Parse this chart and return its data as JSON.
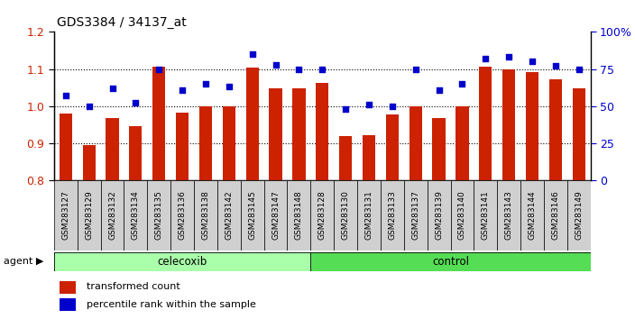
{
  "title": "GDS3384 / 34137_at",
  "samples": [
    "GSM283127",
    "GSM283129",
    "GSM283132",
    "GSM283134",
    "GSM283135",
    "GSM283136",
    "GSM283138",
    "GSM283142",
    "GSM283145",
    "GSM283147",
    "GSM283148",
    "GSM283128",
    "GSM283130",
    "GSM283131",
    "GSM283133",
    "GSM283137",
    "GSM283139",
    "GSM283140",
    "GSM283141",
    "GSM283143",
    "GSM283144",
    "GSM283146",
    "GSM283149"
  ],
  "bar_values": [
    0.98,
    0.895,
    0.968,
    0.947,
    1.105,
    0.982,
    0.999,
    1.0,
    1.103,
    1.047,
    1.047,
    1.063,
    0.918,
    0.922,
    0.978,
    1.0,
    0.968,
    1.0,
    1.105,
    1.1,
    1.092,
    1.072,
    1.047
  ],
  "percentile_values": [
    57,
    50,
    62,
    52,
    75,
    61,
    65,
    63,
    85,
    78,
    75,
    75,
    48,
    51,
    50,
    75,
    61,
    65,
    82,
    83,
    80,
    77,
    75
  ],
  "celecoxib_count": 11,
  "control_count": 12,
  "ylim_left": [
    0.8,
    1.2
  ],
  "ylim_right": [
    0,
    100
  ],
  "yticks_left": [
    0.8,
    0.9,
    1.0,
    1.1,
    1.2
  ],
  "yticks_right": [
    0,
    25,
    50,
    75,
    100
  ],
  "ytick_labels_right": [
    "0",
    "25",
    "50",
    "75",
    "100%"
  ],
  "bar_color": "#cc2200",
  "dot_color": "#0000cc",
  "celecoxib_color": "#aaffaa",
  "control_color": "#55dd55",
  "agent_label": "agent",
  "celecoxib_label": "celecoxib",
  "control_label": "control",
  "legend_bar_label": "transformed count",
  "legend_dot_label": "percentile rank within the sample"
}
